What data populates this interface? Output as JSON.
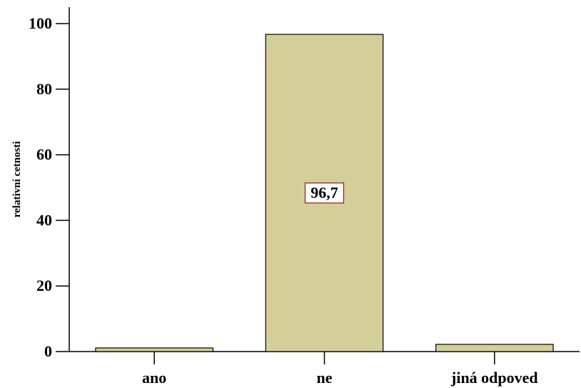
{
  "chart_data": {
    "type": "bar",
    "categories": [
      "ano",
      "ne",
      "jiná odpoved"
    ],
    "values": [
      1.1,
      96.7,
      2.2
    ],
    "ylabel": "relativní cetnosti",
    "xlabel": "",
    "ylim": [
      0,
      105
    ],
    "yticks": [
      0,
      20,
      40,
      60,
      80,
      100
    ],
    "ytick_labels": [
      "0",
      "20",
      "40",
      "60",
      "80",
      "100"
    ],
    "data_labels": [
      {
        "category": "ne",
        "text": "96,7"
      }
    ],
    "grid": false,
    "legend": "none",
    "colors": {
      "bar_fill": "#d4cf98",
      "bar_stroke": "#000000",
      "label_box_stroke": "#8b1a1a",
      "label_box_fill": "#ffffff"
    }
  }
}
